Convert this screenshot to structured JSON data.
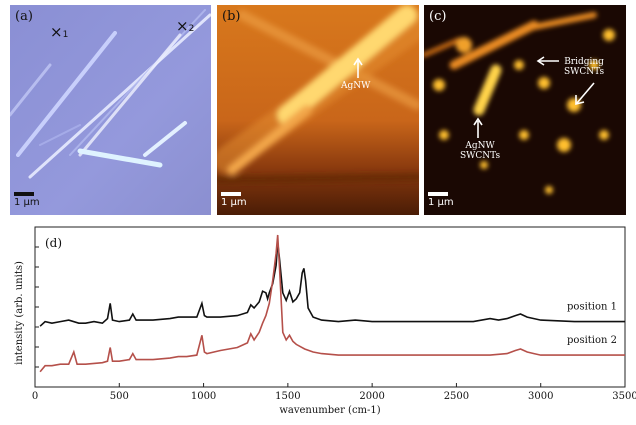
{
  "panels": {
    "a": {
      "label": "(a)",
      "scale": "1 µm",
      "markers": [
        {
          "symbol": "×",
          "index": "1"
        },
        {
          "symbol": "×",
          "index": "2"
        }
      ]
    },
    "b": {
      "label": "(b)",
      "scale": "1 µm",
      "annotation": "AgNW"
    },
    "c": {
      "label": "(c)",
      "scale": "1 µm",
      "annotation_left": "AgNW\nSWCNTs",
      "annotation_right": "Bridging\nSWCNTs"
    }
  },
  "chart_data": {
    "type": "line",
    "panel_label": "(d)",
    "xlabel": "wavenumber (cm-1)",
    "ylabel": "intensity (arb. units)",
    "xlim": [
      0,
      3500
    ],
    "ylim": [
      0,
      1.0
    ],
    "x_ticks": [
      "0",
      "500",
      "1000",
      "1500",
      "2000",
      "2500",
      "3000",
      "3500"
    ],
    "series": [
      {
        "name": "position 1",
        "color": "#111111",
        "x": [
          30,
          60,
          100,
          150,
          200,
          260,
          300,
          350,
          400,
          430,
          446,
          460,
          500,
          560,
          580,
          600,
          700,
          800,
          850,
          900,
          960,
          990,
          1005,
          1020,
          1100,
          1200,
          1260,
          1280,
          1300,
          1330,
          1350,
          1370,
          1380,
          1390,
          1410,
          1430,
          1440,
          1450,
          1470,
          1490,
          1510,
          1530,
          1550,
          1570,
          1585,
          1595,
          1605,
          1620,
          1650,
          1700,
          1800,
          1900,
          2000,
          2200,
          2400,
          2600,
          2700,
          2750,
          2800,
          2850,
          2880,
          2920,
          2960,
          3000,
          3200,
          3400,
          3500
        ],
        "y": [
          0.4,
          0.43,
          0.42,
          0.43,
          0.44,
          0.42,
          0.42,
          0.43,
          0.42,
          0.45,
          0.55,
          0.44,
          0.43,
          0.44,
          0.48,
          0.44,
          0.44,
          0.45,
          0.46,
          0.46,
          0.46,
          0.55,
          0.47,
          0.46,
          0.46,
          0.47,
          0.49,
          0.54,
          0.52,
          0.56,
          0.63,
          0.62,
          0.58,
          0.62,
          0.68,
          0.8,
          0.95,
          0.85,
          0.62,
          0.57,
          0.63,
          0.56,
          0.58,
          0.62,
          0.75,
          0.78,
          0.7,
          0.52,
          0.46,
          0.44,
          0.43,
          0.44,
          0.43,
          0.43,
          0.43,
          0.43,
          0.45,
          0.44,
          0.45,
          0.47,
          0.48,
          0.46,
          0.45,
          0.44,
          0.43,
          0.43,
          0.43
        ]
      },
      {
        "name": "position 2",
        "color": "#b5504a",
        "x": [
          30,
          60,
          100,
          150,
          200,
          230,
          250,
          300,
          400,
          430,
          446,
          460,
          500,
          560,
          580,
          600,
          700,
          800,
          850,
          900,
          960,
          990,
          1005,
          1020,
          1100,
          1200,
          1260,
          1280,
          1300,
          1330,
          1350,
          1370,
          1390,
          1410,
          1430,
          1440,
          1450,
          1470,
          1490,
          1510,
          1530,
          1550,
          1600,
          1650,
          1700,
          1800,
          1900,
          2000,
          2200,
          2400,
          2600,
          2700,
          2800,
          2850,
          2880,
          2920,
          2960,
          3000,
          3200,
          3400,
          3500
        ],
        "y": [
          0.1,
          0.14,
          0.14,
          0.15,
          0.15,
          0.23,
          0.15,
          0.15,
          0.16,
          0.17,
          0.26,
          0.17,
          0.17,
          0.18,
          0.22,
          0.18,
          0.18,
          0.19,
          0.2,
          0.2,
          0.21,
          0.34,
          0.23,
          0.22,
          0.24,
          0.26,
          0.29,
          0.35,
          0.31,
          0.36,
          0.42,
          0.47,
          0.55,
          0.7,
          0.88,
          1.0,
          0.8,
          0.36,
          0.31,
          0.34,
          0.3,
          0.28,
          0.25,
          0.23,
          0.22,
          0.21,
          0.21,
          0.21,
          0.21,
          0.21,
          0.21,
          0.21,
          0.22,
          0.24,
          0.25,
          0.23,
          0.22,
          0.21,
          0.21,
          0.21,
          0.21
        ]
      }
    ]
  }
}
